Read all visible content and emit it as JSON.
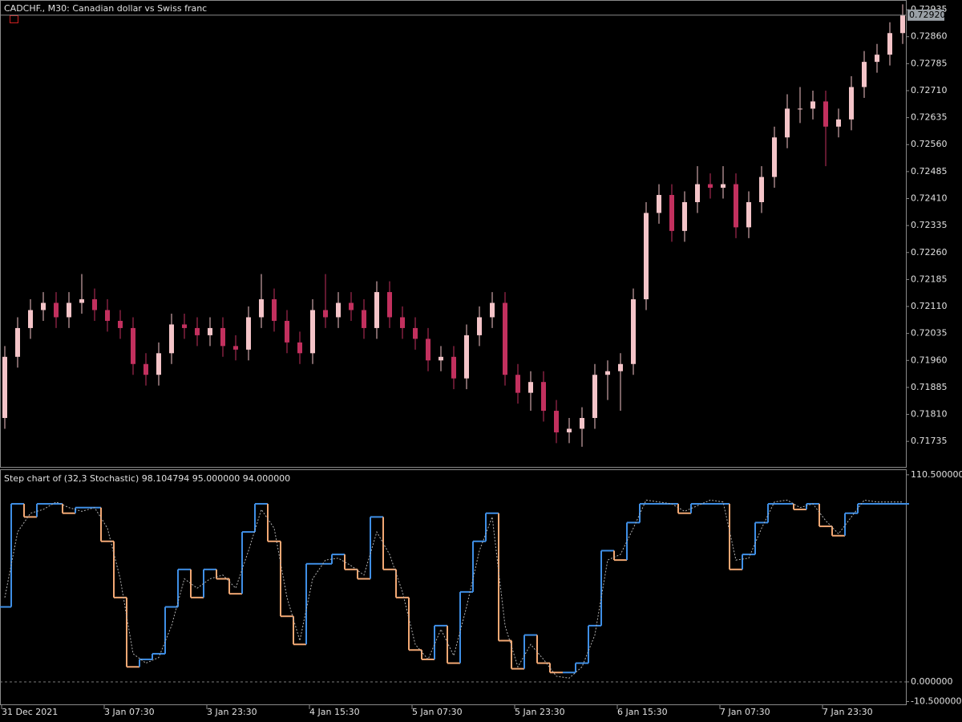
{
  "chart_data": [
    {
      "type": "candlestick",
      "title": "CADCHF., M30:  Canadian dollar vs Swiss franc",
      "up_color": "#f4c4c8",
      "down_color": "#c2305e",
      "open": [
        0.718,
        0.7197,
        0.7205,
        0.721,
        0.7212,
        0.7208,
        0.7212,
        0.7213,
        0.721,
        0.7207,
        0.7205,
        0.7195,
        0.7192,
        0.7198,
        0.7206,
        0.7205,
        0.7203,
        0.7205,
        0.72,
        0.7199,
        0.7208,
        0.7213,
        0.7207,
        0.7201,
        0.7198,
        0.721,
        0.7208,
        0.7212,
        0.721,
        0.7205,
        0.7215,
        0.7208,
        0.7205,
        0.7202,
        0.7196,
        0.7197,
        0.7191,
        0.7203,
        0.7208,
        0.7212,
        0.7192,
        0.7187,
        0.719,
        0.7182,
        0.7176,
        0.7177,
        0.718,
        0.7192,
        0.7193,
        0.7195,
        0.7213,
        0.7237,
        0.7242,
        0.7232,
        0.724,
        0.7245,
        0.7244,
        0.7245,
        0.7233,
        0.724,
        0.7247,
        0.7258,
        0.7266,
        0.7266,
        0.7268,
        0.7261,
        0.7263,
        0.7272,
        0.7279,
        0.7281,
        0.7287
      ],
      "high": [
        0.72,
        0.7208,
        0.7213,
        0.7215,
        0.7215,
        0.7215,
        0.722,
        0.7216,
        0.7213,
        0.721,
        0.7208,
        0.7198,
        0.7201,
        0.7209,
        0.7209,
        0.7208,
        0.7208,
        0.7208,
        0.7203,
        0.7211,
        0.722,
        0.7216,
        0.721,
        0.7204,
        0.7213,
        0.722,
        0.7215,
        0.7215,
        0.7213,
        0.7218,
        0.7218,
        0.7211,
        0.7208,
        0.7205,
        0.72,
        0.72,
        0.7206,
        0.7211,
        0.7215,
        0.7215,
        0.7195,
        0.7193,
        0.7193,
        0.7185,
        0.718,
        0.7183,
        0.7195,
        0.7196,
        0.7198,
        0.7216,
        0.724,
        0.7245,
        0.7245,
        0.7243,
        0.725,
        0.7248,
        0.725,
        0.7248,
        0.7243,
        0.725,
        0.7261,
        0.727,
        0.7272,
        0.7271,
        0.7271,
        0.7266,
        0.7275,
        0.7282,
        0.7284,
        0.729,
        0.7295
      ],
      "low": [
        0.7177,
        0.7194,
        0.7202,
        0.7207,
        0.7205,
        0.7205,
        0.7209,
        0.7207,
        0.7204,
        0.7202,
        0.7192,
        0.7189,
        0.7189,
        0.7195,
        0.7202,
        0.72,
        0.72,
        0.7197,
        0.7196,
        0.7196,
        0.7205,
        0.7204,
        0.7198,
        0.7195,
        0.7195,
        0.7205,
        0.7205,
        0.7207,
        0.7202,
        0.7202,
        0.7205,
        0.7202,
        0.7199,
        0.7193,
        0.7193,
        0.7188,
        0.7188,
        0.72,
        0.7205,
        0.7189,
        0.7184,
        0.7182,
        0.7179,
        0.7173,
        0.7173,
        0.7172,
        0.7177,
        0.7185,
        0.7182,
        0.7192,
        0.721,
        0.7234,
        0.7229,
        0.7229,
        0.7237,
        0.7241,
        0.7241,
        0.723,
        0.723,
        0.7237,
        0.7244,
        0.7255,
        0.7262,
        0.7263,
        0.725,
        0.7258,
        0.726,
        0.7269,
        0.7276,
        0.7278,
        0.7284
      ],
      "close": [
        0.7197,
        0.7205,
        0.721,
        0.7212,
        0.7208,
        0.7212,
        0.7213,
        0.721,
        0.7207,
        0.7205,
        0.7195,
        0.7192,
        0.7198,
        0.7206,
        0.7205,
        0.7203,
        0.7205,
        0.72,
        0.7199,
        0.7208,
        0.7213,
        0.7207,
        0.7201,
        0.7198,
        0.721,
        0.7208,
        0.7212,
        0.721,
        0.7205,
        0.7215,
        0.7208,
        0.7205,
        0.7202,
        0.7196,
        0.7197,
        0.7191,
        0.7203,
        0.7208,
        0.7212,
        0.7192,
        0.7187,
        0.719,
        0.7182,
        0.7176,
        0.7177,
        0.718,
        0.7192,
        0.7193,
        0.7195,
        0.7213,
        0.7237,
        0.7242,
        0.7232,
        0.724,
        0.7245,
        0.7244,
        0.7245,
        0.7233,
        0.724,
        0.7247,
        0.7258,
        0.7266,
        0.7266,
        0.7268,
        0.7261,
        0.7263,
        0.7272,
        0.7279,
        0.7281,
        0.7287,
        0.7292
      ],
      "ylim": [
        0.71664,
        0.72962
      ],
      "yticks": [
        0.72935,
        {
          "value": 0.7286,
          "label": "0.72860"
        },
        0.72785,
        {
          "value": 0.7271,
          "label": "0.72710"
        },
        0.72635,
        {
          "value": 0.7256,
          "label": "0.72560"
        },
        0.72485,
        {
          "value": 0.7241,
          "label": "0.72410"
        },
        0.72335,
        {
          "value": 0.7226,
          "label": "0.72260"
        },
        0.72185,
        {
          "value": 0.7211,
          "label": "0.72110"
        },
        0.72035,
        {
          "value": 0.7196,
          "label": "0.71960"
        },
        0.71885,
        {
          "value": 0.7181,
          "label": "0.71810"
        },
        0.71735
      ],
      "current_price": {
        "value": 0.7292,
        "label": "0.72920"
      }
    },
    {
      "type": "step",
      "title": "Step chart of (32,3 Stochastic) 98.104794 95.000000 94.000000",
      "series": [
        {
          "name": "main",
          "up_color": "#3f8fe6",
          "down_color": "#f2a874",
          "values": [
            40,
            95,
            88,
            95,
            95,
            90,
            93,
            93,
            75,
            45,
            8,
            12,
            15,
            40,
            60,
            45,
            60,
            55,
            47,
            80,
            95,
            75,
            35,
            20,
            63,
            63,
            68,
            60,
            55,
            88,
            60,
            45,
            17,
            12,
            30,
            10,
            48,
            75,
            90,
            22,
            7,
            25,
            10,
            5,
            5,
            10,
            30,
            70,
            65,
            85,
            95,
            95,
            95,
            90,
            95,
            95,
            95,
            60,
            68,
            85,
            95,
            95,
            92,
            95,
            83,
            78,
            90,
            95,
            95,
            95,
            95
          ]
        },
        {
          "name": "signal",
          "color": "#b0b0b0",
          "values": [
            45,
            80,
            90,
            92,
            96,
            93,
            91,
            93,
            82,
            55,
            15,
            10,
            13,
            30,
            55,
            50,
            55,
            57,
            50,
            70,
            92,
            82,
            45,
            22,
            55,
            65,
            66,
            62,
            57,
            80,
            68,
            48,
            20,
            12,
            28,
            14,
            40,
            70,
            88,
            30,
            8,
            20,
            12,
            3,
            2,
            8,
            25,
            65,
            68,
            82,
            97,
            96,
            95,
            91,
            94,
            97,
            96,
            65,
            66,
            82,
            96,
            97,
            93,
            95,
            86,
            79,
            88,
            97,
            96,
            96,
            96
          ]
        }
      ],
      "ylim": [
        -12,
        113
      ],
      "yticks": [
        {
          "value": 110.5,
          "label": "110.500000"
        },
        {
          "value": 0,
          "label": "0.000000"
        },
        {
          "value": -10.5,
          "label": "-10.500000"
        }
      ],
      "levels": [
        0
      ],
      "x_labels": [
        "31 Dec 2021",
        "3 Jan 07:30",
        "3 Jan 23:30",
        "4 Jan 15:30",
        "5 Jan 07:30",
        "5 Jan 23:30",
        "6 Jan 15:30",
        "7 Jan 07:30",
        "7 Jan 23:30"
      ]
    }
  ]
}
